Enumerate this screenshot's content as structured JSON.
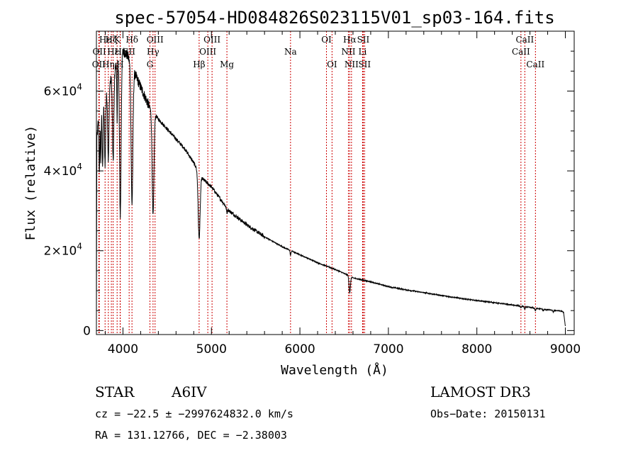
{
  "chart_data": {
    "type": "line",
    "title": "spec-57054-HD084826S023115V01_sp03-164.fits",
    "xlabel": "Wavelength (Å)",
    "ylabel": "Flux (relative)",
    "xlim": [
      3700,
      9100
    ],
    "ylim": [
      -1000,
      75000
    ],
    "x_ticks": [
      {
        "value": 4000,
        "label": "4000"
      },
      {
        "value": 5000,
        "label": "5000"
      },
      {
        "value": 6000,
        "label": "6000"
      },
      {
        "value": 7000,
        "label": "7000"
      },
      {
        "value": 8000,
        "label": "8000"
      },
      {
        "value": 9000,
        "label": "9000"
      }
    ],
    "y_ticks": [
      {
        "value": 0,
        "label": "0"
      },
      {
        "value": 20000,
        "label": "2×10",
        "exp": "4"
      },
      {
        "value": 40000,
        "label": "4×10",
        "exp": "4"
      },
      {
        "value": 60000,
        "label": "6×10",
        "exp": "4"
      }
    ],
    "spectral_lines": [
      {
        "wavelength": 3727,
        "label": "OII",
        "row": 2
      },
      {
        "wavelength": 3733,
        "label": "OII",
        "row": 1
      },
      {
        "wavelength": 3798,
        "label": "Hε",
        "row": 0
      },
      {
        "wavelength": 3835,
        "label": "Hη",
        "row": 2
      },
      {
        "wavelength": 3869,
        "label": "Hζ",
        "row": 0
      },
      {
        "wavelength": 3889,
        "label": "Hε",
        "row": 1
      },
      {
        "wavelength": 3934,
        "label": "K",
        "row": 0
      },
      {
        "wavelength": 3968,
        "label": "H",
        "row": 2
      },
      {
        "wavelength": 3970,
        "label": "Hε",
        "row": 1
      },
      {
        "wavelength": 4102,
        "label": "Hδ",
        "row": 0
      },
      {
        "wavelength": 4070,
        "label": "SII",
        "row": 1
      },
      {
        "wavelength": 4305,
        "label": "G",
        "row": 2
      },
      {
        "wavelength": 4340,
        "label": "Hγ",
        "row": 1
      },
      {
        "wavelength": 4363,
        "label": "OIII",
        "row": 0
      },
      {
        "wavelength": 4861,
        "label": "Hβ",
        "row": 2
      },
      {
        "wavelength": 4959,
        "label": "OIII",
        "row": 1
      },
      {
        "wavelength": 5007,
        "label": "OIII",
        "row": 0
      },
      {
        "wavelength": 5175,
        "label": "Mg",
        "row": 2
      },
      {
        "wavelength": 5894,
        "label": "Na",
        "row": 1
      },
      {
        "wavelength": 6300,
        "label": "OI",
        "row": 0
      },
      {
        "wavelength": 6363,
        "label": "OI",
        "row": 2
      },
      {
        "wavelength": 6548,
        "label": "NII",
        "row": 1
      },
      {
        "wavelength": 6563,
        "label": "Hα",
        "row": 0
      },
      {
        "wavelength": 6583,
        "label": "NII",
        "row": 2
      },
      {
        "wavelength": 6716,
        "label": "SII",
        "row": 0
      },
      {
        "wavelength": 6708,
        "label": "Li",
        "row": 1
      },
      {
        "wavelength": 6731,
        "label": "SII",
        "row": 2
      },
      {
        "wavelength": 8498,
        "label": "CaII",
        "row": 1
      },
      {
        "wavelength": 8542,
        "label": "CaII",
        "row": 0
      },
      {
        "wavelength": 8662,
        "label": "CaII",
        "row": 2
      }
    ],
    "continuum": [
      [
        3700,
        200
      ],
      [
        3705,
        48000
      ],
      [
        3720,
        52000
      ],
      [
        3760,
        55000
      ],
      [
        3800,
        58000
      ],
      [
        3850,
        62000
      ],
      [
        3900,
        65000
      ],
      [
        3950,
        68000
      ],
      [
        4000,
        70000
      ],
      [
        4050,
        69000
      ],
      [
        4100,
        66000
      ],
      [
        4150,
        63500
      ],
      [
        4200,
        61000
      ],
      [
        4250,
        58500
      ],
      [
        4300,
        56000
      ],
      [
        4350,
        54500
      ],
      [
        4400,
        53000
      ],
      [
        4500,
        50500
      ],
      [
        4600,
        48000
      ],
      [
        4700,
        45500
      ],
      [
        4800,
        42000
      ],
      [
        4900,
        38000
      ],
      [
        5000,
        36000
      ],
      [
        5100,
        33000
      ],
      [
        5200,
        30000
      ],
      [
        5400,
        26500
      ],
      [
        5600,
        23500
      ],
      [
        5800,
        21000
      ],
      [
        5900,
        20000
      ],
      [
        6000,
        19000
      ],
      [
        6200,
        17000
      ],
      [
        6400,
        15300
      ],
      [
        6550,
        13800
      ],
      [
        6600,
        13200
      ],
      [
        6800,
        12200
      ],
      [
        7000,
        11000
      ],
      [
        7200,
        10200
      ],
      [
        7400,
        9500
      ],
      [
        7600,
        8800
      ],
      [
        7800,
        8100
      ],
      [
        8000,
        7500
      ],
      [
        8200,
        7000
      ],
      [
        8400,
        6400
      ],
      [
        8600,
        5800
      ],
      [
        8800,
        5200
      ],
      [
        8950,
        4900
      ],
      [
        8980,
        4600
      ],
      [
        9000,
        1000
      ]
    ],
    "absorption": [
      {
        "center": 3734,
        "depth": 14000,
        "width": 4
      },
      {
        "center": 3750,
        "depth": 12000,
        "width": 4
      },
      {
        "center": 3771,
        "depth": 15000,
        "width": 5
      },
      {
        "center": 3798,
        "depth": 16000,
        "width": 6
      },
      {
        "center": 3835,
        "depth": 18000,
        "width": 7
      },
      {
        "center": 3889,
        "depth": 22000,
        "width": 8
      },
      {
        "center": 3934,
        "depth": 16000,
        "width": 3
      },
      {
        "center": 3970,
        "depth": 40000,
        "width": 9
      },
      {
        "center": 4102,
        "depth": 34000,
        "width": 10
      },
      {
        "center": 4340,
        "depth": 26000,
        "width": 10
      },
      {
        "center": 4861,
        "depth": 16500,
        "width": 11
      },
      {
        "center": 5175,
        "depth": 1200,
        "width": 6
      },
      {
        "center": 5894,
        "depth": 1200,
        "width": 5
      },
      {
        "center": 6563,
        "depth": 4200,
        "width": 8
      },
      {
        "center": 8498,
        "depth": 500,
        "width": 4
      },
      {
        "center": 8542,
        "depth": 700,
        "width": 5
      },
      {
        "center": 8662,
        "depth": 700,
        "width": 5
      },
      {
        "center": 8750,
        "depth": 400,
        "width": 5
      },
      {
        "center": 8863,
        "depth": 400,
        "width": 5
      }
    ]
  },
  "info": {
    "object_class": "STAR",
    "subclass": "A6IV",
    "survey": "LAMOST DR3",
    "redshift_text": "cz = −22.5 ± −2997624832.0 km/s",
    "obs_date": "Obs−Date: 20150131",
    "coords": "RA = 131.12766, DEC =  −2.38003"
  }
}
